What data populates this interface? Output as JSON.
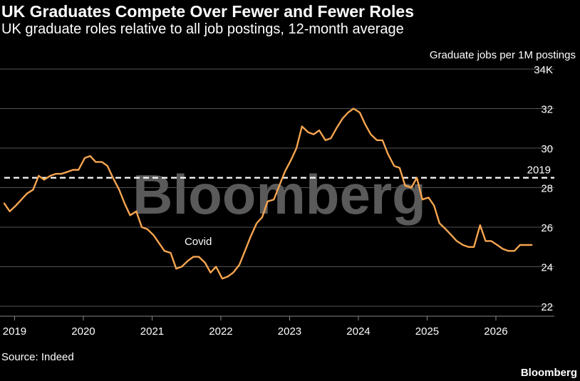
{
  "title": "UK Graduates Compete Over Fewer and Fewer Roles",
  "subtitle": "UK graduate roles relative to all job postings, 12-month average",
  "source": "Source: Indeed",
  "brand": "Bloomberg",
  "watermark": "Bloomberg",
  "colors": {
    "background": "#000000",
    "line": "#f6a550",
    "grid": "#555555",
    "text": "#ffffff",
    "reference": "#ffffff",
    "watermark": "#5a5a5a"
  },
  "chart_data": {
    "type": "line",
    "ylabel": "Graduate jobs per 1M postings",
    "ylim": [
      22,
      34
    ],
    "y_ticks": [
      {
        "value": 22,
        "label": "22"
      },
      {
        "value": 24,
        "label": "24"
      },
      {
        "value": 26,
        "label": "26"
      },
      {
        "value": 28,
        "label": "28"
      },
      {
        "value": 30,
        "label": "30"
      },
      {
        "value": 32,
        "label": "32"
      },
      {
        "value": 34,
        "label": "34K"
      }
    ],
    "xlim": [
      2018.85,
      2026.85
    ],
    "x_ticks": [
      {
        "value": 2019,
        "label": "2019"
      },
      {
        "value": 2020,
        "label": "2020"
      },
      {
        "value": 2021,
        "label": "2021"
      },
      {
        "value": 2022,
        "label": "2022"
      },
      {
        "value": 2023,
        "label": "2023"
      },
      {
        "value": 2024,
        "label": "2024"
      },
      {
        "value": 2025,
        "label": "2025"
      },
      {
        "value": 2026,
        "label": "2026"
      }
    ],
    "grid": true,
    "reference_line": {
      "value": 28.5,
      "label": "2019"
    },
    "annotations": [
      {
        "text": "Covid",
        "x": 2021.67,
        "y": 25.1
      }
    ],
    "series": [
      {
        "x": [
          2018.85,
          2018.93,
          2019.02,
          2019.1,
          2019.18,
          2019.27,
          2019.35,
          2019.43,
          2019.52,
          2019.6,
          2019.68,
          2019.77,
          2019.85,
          2019.93,
          2020.02,
          2020.1,
          2020.18,
          2020.27,
          2020.35,
          2020.43,
          2020.52,
          2020.6,
          2020.68,
          2020.77,
          2020.85,
          2020.93,
          2021.02,
          2021.1,
          2021.18,
          2021.27,
          2021.35,
          2021.43,
          2021.52,
          2021.6,
          2021.68,
          2021.77,
          2021.85,
          2021.93,
          2022.02,
          2022.1,
          2022.18,
          2022.27,
          2022.35,
          2022.43,
          2022.52,
          2022.6,
          2022.68,
          2022.77,
          2022.85,
          2022.93,
          2023.02,
          2023.1,
          2023.18,
          2023.27,
          2023.35,
          2023.43,
          2023.52,
          2023.6,
          2023.68,
          2023.77,
          2023.85,
          2023.93,
          2024.02,
          2024.1,
          2024.18,
          2024.27,
          2024.35,
          2024.43,
          2024.52,
          2024.6,
          2024.68,
          2024.77,
          2024.85,
          2024.93,
          2025.02,
          2025.1,
          2025.18,
          2025.27,
          2025.35,
          2025.43,
          2025.52,
          2025.6,
          2025.68,
          2025.77,
          2025.85,
          2025.93,
          2026.02,
          2026.1,
          2026.18,
          2026.27,
          2026.35,
          2026.43,
          2026.52
        ],
        "y": [
          27.2,
          26.8,
          27.1,
          27.4,
          27.7,
          27.9,
          28.6,
          28.4,
          28.6,
          28.7,
          28.7,
          28.8,
          28.9,
          28.9,
          29.5,
          29.6,
          29.3,
          29.3,
          29.1,
          28.5,
          27.9,
          27.2,
          26.6,
          26.8,
          26.0,
          25.9,
          25.6,
          25.2,
          24.8,
          24.7,
          23.9,
          24.0,
          24.3,
          24.5,
          24.5,
          24.2,
          23.7,
          24.0,
          23.4,
          23.5,
          23.7,
          24.1,
          24.8,
          25.5,
          26.2,
          26.5,
          27.3,
          27.4,
          28.1,
          28.8,
          29.4,
          30.0,
          31.1,
          30.8,
          30.7,
          30.9,
          30.4,
          30.5,
          31.0,
          31.5,
          31.8,
          32.0,
          31.8,
          31.2,
          30.7,
          30.4,
          30.4,
          29.7,
          29.1,
          29.0,
          28.1,
          28.0,
          28.5,
          27.4,
          27.5,
          27.1,
          26.2,
          25.9,
          25.6,
          25.3,
          25.1,
          25.0,
          25.0,
          26.1,
          25.3,
          25.3,
          25.1,
          24.9,
          24.8,
          24.8,
          25.1,
          25.1,
          25.1
        ]
      }
    ]
  }
}
